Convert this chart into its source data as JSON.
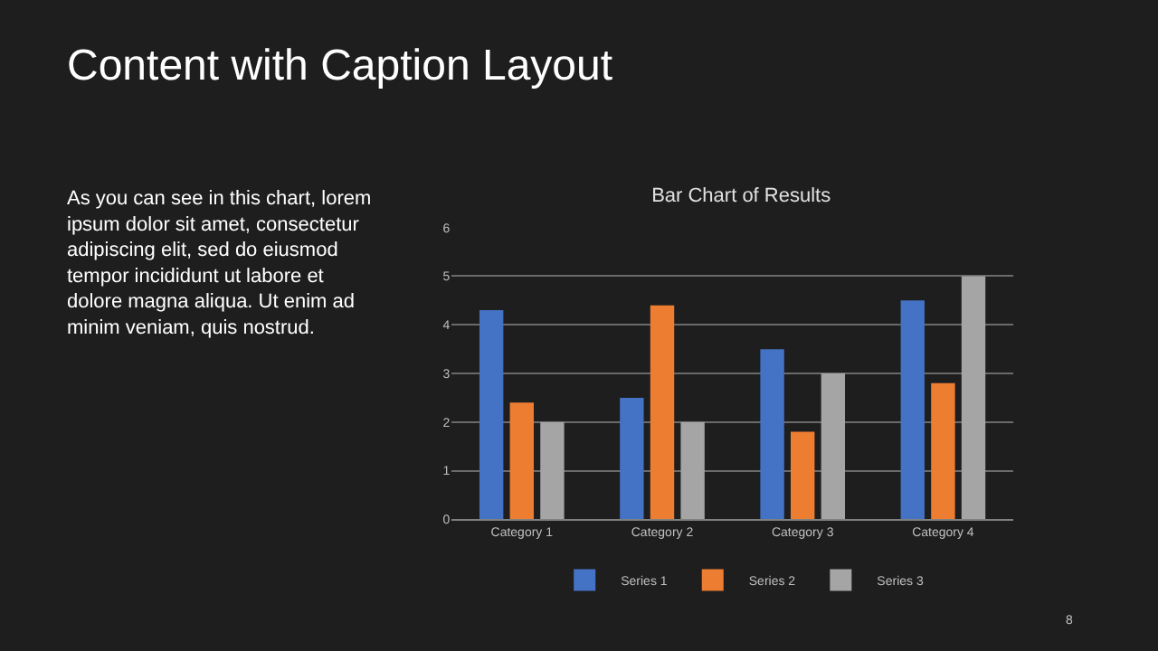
{
  "chart_data": {
    "type": "bar",
    "title": "Bar Chart of Results",
    "categories": [
      "Category 1",
      "Category 2",
      "Category 3",
      "Category 4"
    ],
    "series": [
      {
        "name": "Series 1",
        "color": "#4472c4",
        "values": [
          4.3,
          2.5,
          3.5,
          4.5
        ]
      },
      {
        "name": "Series 2",
        "color": "#ed7d31",
        "values": [
          2.4,
          4.4,
          1.8,
          2.8
        ]
      },
      {
        "name": "Series 3",
        "color": "#a5a5a5",
        "values": [
          2,
          2,
          3,
          5
        ]
      }
    ],
    "ylim": [
      0,
      6
    ],
    "yticks": [
      0,
      1,
      2,
      3,
      4,
      5,
      6
    ],
    "grid": "y",
    "legend": "bottom",
    "annotations": [
      "Content with Caption Layout",
      "As you can see in this chart, lorem ipsum dolor sit amet, consectetur adipiscing elit, sed do eiusmod tempor incididunt ut labore et dolore magna aliqua. Ut enim ad minim veniam, quis nostrud.",
      "8"
    ]
  }
}
